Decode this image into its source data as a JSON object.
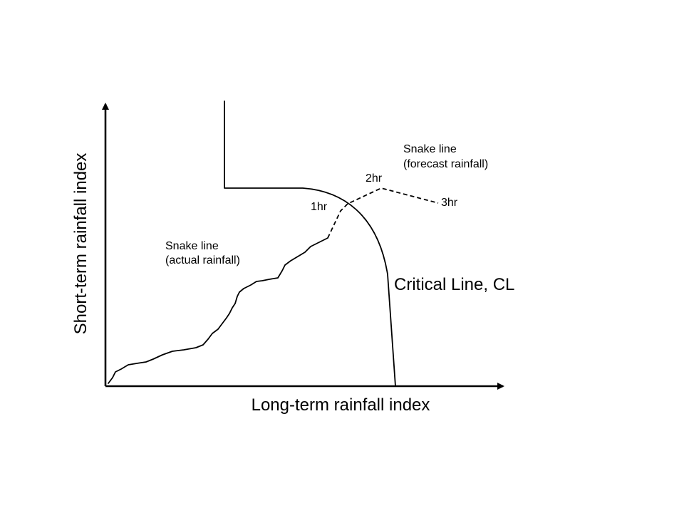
{
  "axes": {
    "x_label": "Long-term rainfall index",
    "y_label": "Short-term rainfall index"
  },
  "critical_line": {
    "label": "Critical Line, CL"
  },
  "snake_actual": {
    "label_line1": "Snake line",
    "label_line2": "(actual rainfall)"
  },
  "snake_forecast": {
    "label_line1": "Snake line",
    "label_line2": "(forecast rainfall)",
    "steps": [
      "1hr",
      "2hr",
      "3hr"
    ]
  }
}
